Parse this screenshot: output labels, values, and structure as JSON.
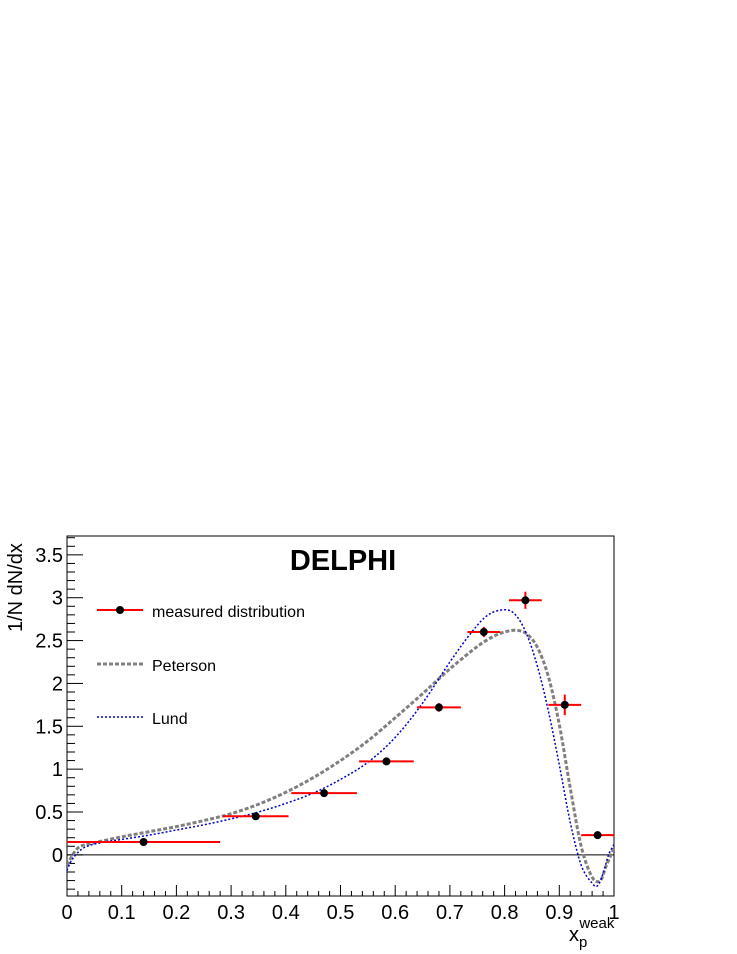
{
  "chart_data": {
    "type": "scatter",
    "title": "DELPHI",
    "xlabel": "x",
    "xlabel_sub": "p",
    "xlabel_sup": "weak",
    "ylabel": "1/N dN/dx",
    "xlim": [
      0,
      1
    ],
    "ylim": [
      -0.48,
      3.72
    ],
    "x_ticks": [
      "0",
      "0.1",
      "0.2",
      "0.3",
      "0.4",
      "0.5",
      "0.6",
      "0.7",
      "0.8",
      "0.9",
      "1"
    ],
    "y_ticks": [
      "0",
      "0.5",
      "1",
      "1.5",
      "2",
      "2.5",
      "3",
      "3.5"
    ],
    "legend": [
      "measured distribution",
      "Peterson",
      "Lund"
    ],
    "legend_position": "top-left",
    "colors": {
      "data_marker": "#000000",
      "error_bars": "#ff0000",
      "peterson": "#808080",
      "lund": "#0000cc"
    },
    "series": [
      {
        "name": "measured distribution",
        "x": [
          0.14,
          0.345,
          0.47,
          0.584,
          0.68,
          0.762,
          0.838,
          0.91,
          0.97
        ],
        "y": [
          0.15,
          0.45,
          0.72,
          1.09,
          1.72,
          2.6,
          2.97,
          1.75,
          0.23
        ],
        "xerr_low": [
          0.14,
          0.06,
          0.06,
          0.05,
          0.04,
          0.03,
          0.03,
          0.03,
          0.03
        ],
        "xerr_high": [
          0.14,
          0.06,
          0.06,
          0.05,
          0.04,
          0.03,
          0.03,
          0.03,
          0.03
        ],
        "yerr": [
          0.02,
          0.03,
          0.03,
          0.03,
          0.05,
          0.06,
          0.1,
          0.12,
          0.04
        ]
      },
      {
        "name": "Peterson",
        "x": [
          0,
          0.02,
          0.05,
          0.1,
          0.15,
          0.2,
          0.25,
          0.3,
          0.35,
          0.4,
          0.45,
          0.5,
          0.55,
          0.6,
          0.65,
          0.7,
          0.75,
          0.78,
          0.8,
          0.82,
          0.84,
          0.86,
          0.88,
          0.9,
          0.92,
          0.94,
          0.96,
          0.975,
          0.985,
          1.0
        ],
        "y": [
          -0.12,
          0.08,
          0.14,
          0.21,
          0.27,
          0.33,
          0.4,
          0.48,
          0.59,
          0.73,
          0.9,
          1.1,
          1.33,
          1.6,
          1.88,
          2.17,
          2.43,
          2.55,
          2.6,
          2.62,
          2.58,
          2.42,
          2.08,
          1.52,
          0.78,
          0.1,
          -0.26,
          -0.3,
          -0.14,
          0.08
        ]
      },
      {
        "name": "Lund",
        "x": [
          0,
          0.01,
          0.03,
          0.06,
          0.1,
          0.15,
          0.2,
          0.25,
          0.3,
          0.35,
          0.4,
          0.45,
          0.5,
          0.55,
          0.6,
          0.65,
          0.7,
          0.74,
          0.77,
          0.8,
          0.82,
          0.84,
          0.86,
          0.88,
          0.9,
          0.92,
          0.94,
          0.96,
          0.97,
          0.98,
          0.99,
          1.0
        ],
        "y": [
          -0.18,
          -0.05,
          0.08,
          0.14,
          0.18,
          0.23,
          0.29,
          0.35,
          0.42,
          0.5,
          0.6,
          0.72,
          0.88,
          1.08,
          1.37,
          1.77,
          2.25,
          2.6,
          2.8,
          2.86,
          2.8,
          2.58,
          2.2,
          1.68,
          1.05,
          0.38,
          -0.12,
          -0.33,
          -0.36,
          -0.22,
          0.0,
          0.12
        ]
      }
    ]
  }
}
